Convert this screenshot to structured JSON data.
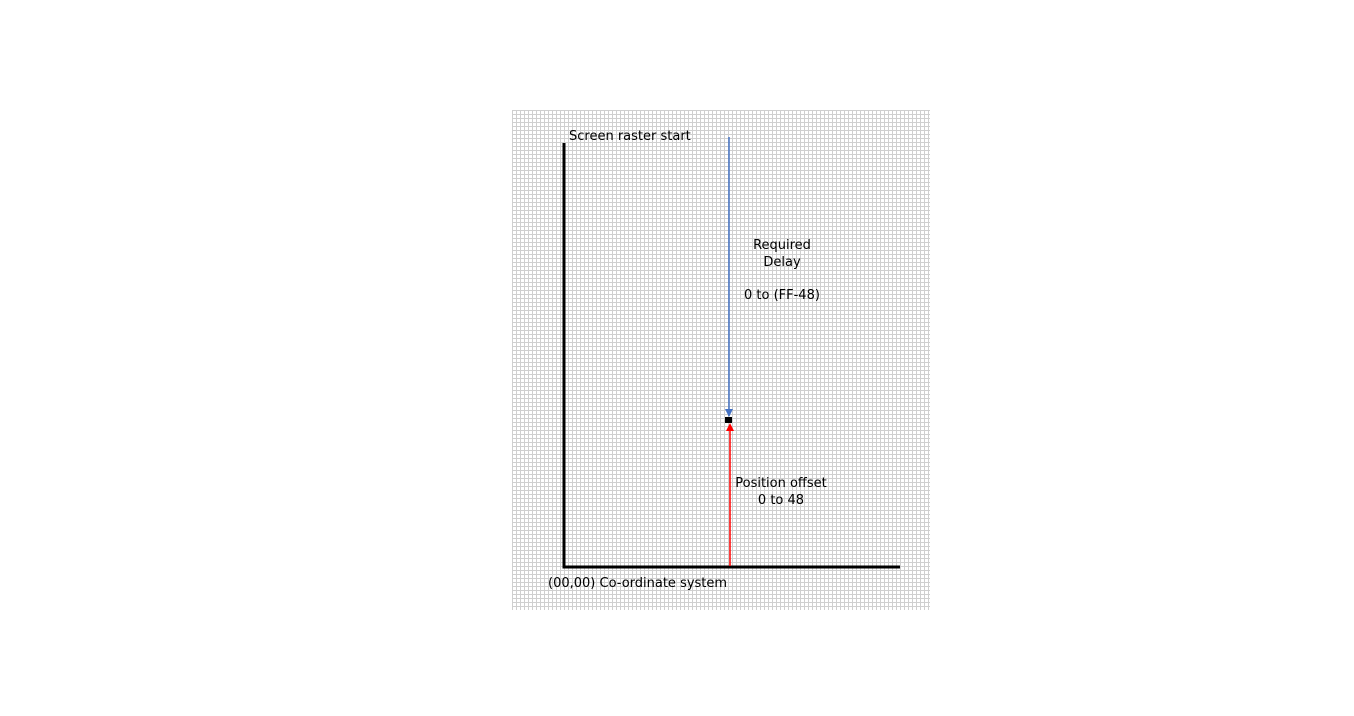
{
  "labels": {
    "raster_start": "Screen raster start",
    "required_delay_line1": "Required",
    "required_delay_line2": "Delay",
    "required_delay_range": "0 to (FF-48)",
    "position_offset_line1": "Position offset",
    "position_offset_line2": "0 to 48",
    "origin": "(00,00) Co-ordinate system"
  },
  "colors": {
    "axis": "#000000",
    "delay_arrow": "#4472c4",
    "offset_arrow": "#ff0000",
    "marker": "#000000",
    "grid_line": "#cfcfcf"
  }
}
